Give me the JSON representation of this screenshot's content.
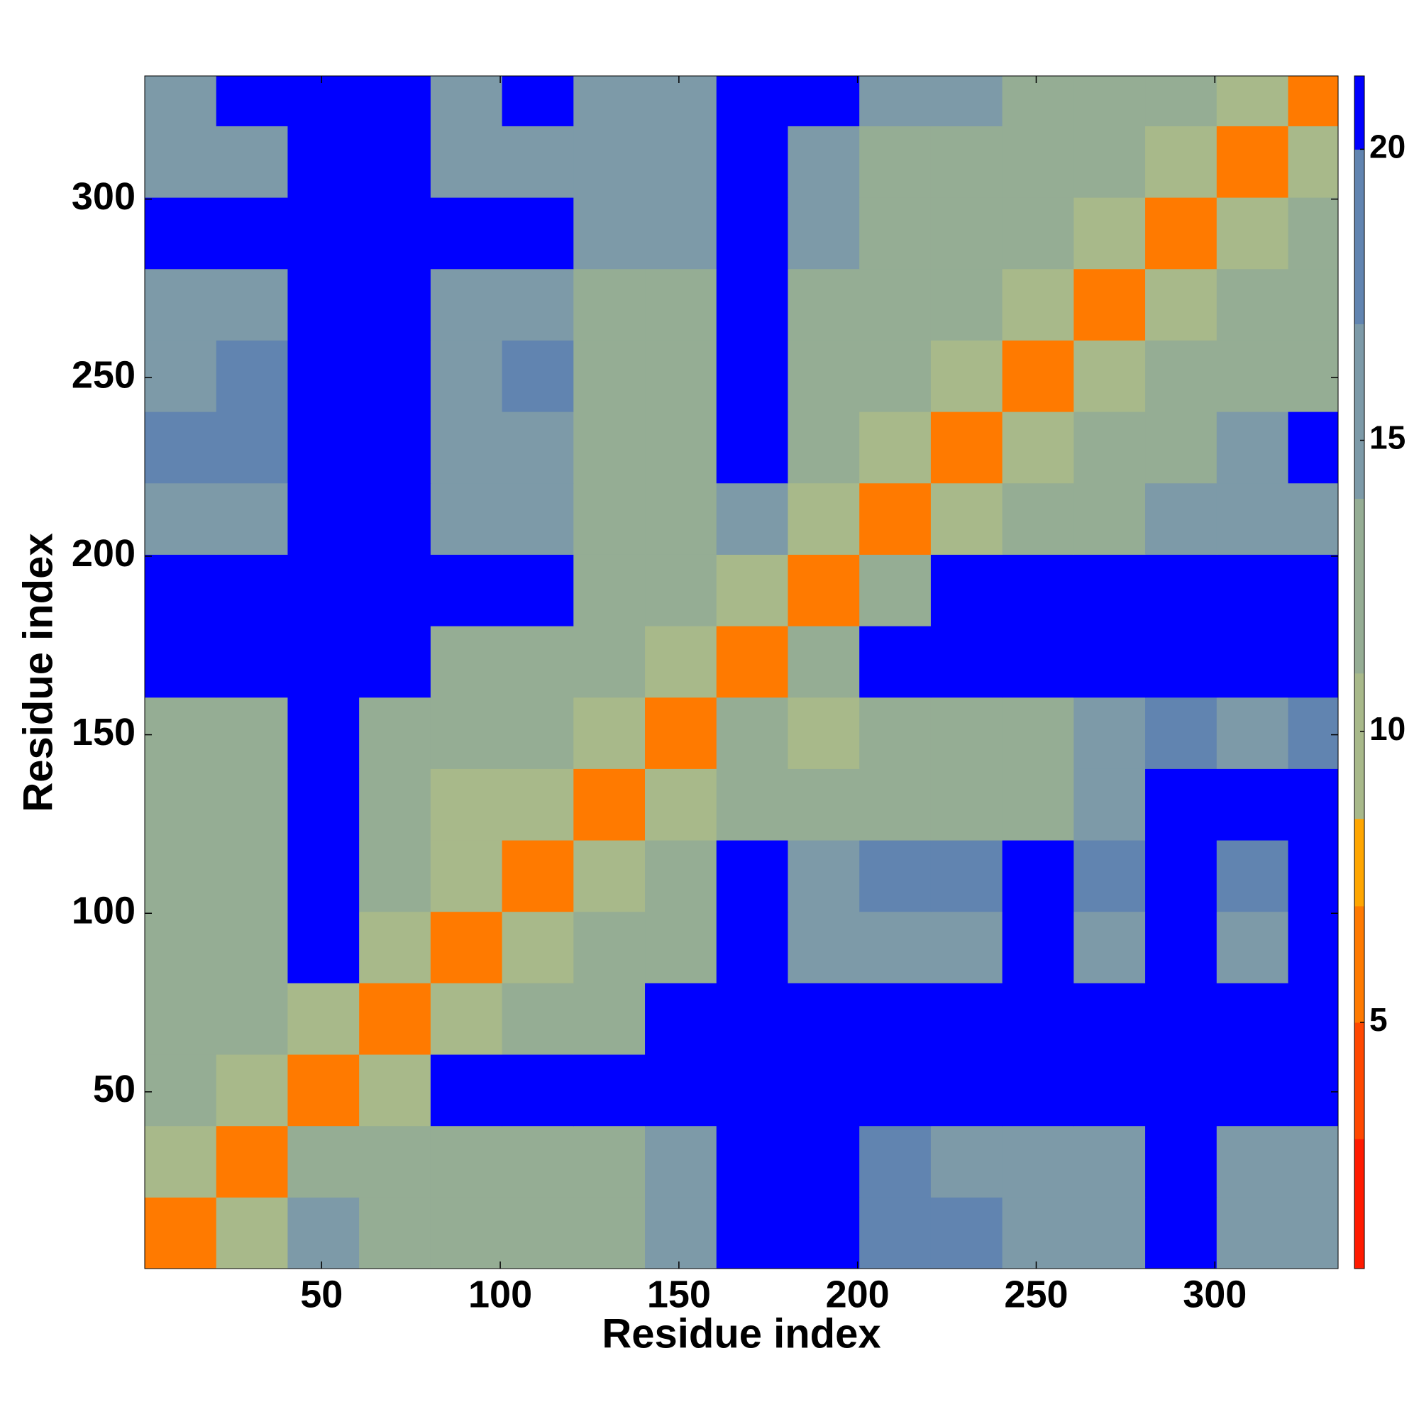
{
  "chart_data": {
    "type": "heatmap",
    "x_label": "Residue index",
    "y_label": "Residue index",
    "x_bins": [
      0.5,
      20.5,
      40.5,
      60.5,
      80.5,
      100.5,
      120.5,
      140.5,
      160.5,
      180.5,
      200.5,
      220.5,
      240.5,
      260.5,
      280.5,
      300.5,
      320.5,
      334.5
    ],
    "y_bins": [
      0.5,
      20.5,
      40.5,
      60.5,
      80.5,
      100.5,
      120.5,
      140.5,
      160.5,
      180.5,
      200.5,
      220.5,
      240.5,
      260.5,
      280.5,
      300.5,
      320.5,
      334.5
    ],
    "values": [
      [
        7,
        11,
        15,
        13,
        12,
        12,
        13,
        15,
        21,
        21,
        18,
        18,
        17,
        17,
        21,
        17,
        17
      ],
      [
        11,
        7,
        12,
        12,
        12,
        12,
        12,
        15,
        21,
        21,
        18,
        17,
        17,
        17,
        21,
        17,
        17
      ],
      [
        14,
        10,
        7,
        11,
        21,
        21,
        21,
        21,
        21,
        21,
        21,
        21,
        21,
        21,
        21,
        21,
        21
      ],
      [
        13,
        12,
        11,
        7,
        11,
        12,
        13,
        21,
        21,
        21,
        21,
        21,
        21,
        21,
        21,
        21,
        21
      ],
      [
        12,
        12,
        21,
        11,
        7,
        10,
        12,
        12,
        21,
        17,
        17,
        17,
        21,
        17,
        21,
        17,
        21
      ],
      [
        12,
        12,
        21,
        12,
        10,
        7,
        11,
        13,
        21,
        17,
        18,
        18,
        21,
        18,
        21,
        18,
        21
      ],
      [
        12,
        13,
        21,
        12,
        11,
        11,
        7,
        11,
        13,
        13,
        13,
        13,
        14,
        15,
        21,
        21,
        21
      ],
      [
        13,
        13,
        21,
        13,
        12,
        12,
        11,
        7,
        12,
        11,
        13,
        13,
        14,
        15,
        18,
        17,
        18
      ],
      [
        21,
        21,
        21,
        21,
        13,
        14,
        12,
        11,
        7,
        12,
        21,
        21,
        21,
        21,
        21,
        21,
        21
      ],
      [
        21,
        21,
        21,
        21,
        21,
        21,
        13,
        12,
        11,
        7,
        12,
        21,
        21,
        21,
        21,
        21,
        21
      ],
      [
        17,
        17,
        21,
        21,
        16,
        16,
        12,
        12,
        15,
        11,
        7,
        11,
        13,
        13,
        16,
        17,
        17
      ],
      [
        18,
        18,
        21,
        21,
        17,
        17,
        13,
        13,
        21,
        13,
        11,
        7,
        11,
        12,
        13,
        16,
        21
      ],
      [
        17,
        18,
        21,
        21,
        17,
        18,
        13,
        13,
        21,
        13,
        12,
        11,
        7,
        11,
        12,
        13,
        14
      ],
      [
        17,
        17,
        21,
        21,
        17,
        17,
        13,
        14,
        21,
        13,
        12,
        12,
        11,
        7,
        11,
        12,
        13
      ],
      [
        21,
        21,
        21,
        21,
        21,
        21,
        15,
        16,
        21,
        15,
        13,
        12,
        12,
        11,
        7,
        11,
        12
      ],
      [
        17,
        17,
        21,
        21,
        17,
        17,
        16,
        17,
        21,
        17,
        14,
        13,
        12,
        12,
        11,
        7,
        11
      ],
      [
        17,
        21,
        21,
        21,
        17,
        21,
        16,
        17,
        21,
        21,
        16,
        15,
        13,
        12,
        12,
        11,
        7
      ]
    ],
    "xlim": [
      0.5,
      334.5
    ],
    "ylim": [
      0.5,
      334.5
    ],
    "xticks": [
      50,
      100,
      150,
      200,
      250,
      300
    ],
    "yticks": [
      50,
      100,
      150,
      200,
      250,
      300
    ],
    "clim": [
      0.77,
      21.26
    ],
    "cticks": [
      5,
      10,
      15,
      20
    ],
    "colorscale": [
      {
        "max": 3,
        "color": "#ff1a00"
      },
      {
        "max": 5,
        "color": "#ff4800"
      },
      {
        "max": 7,
        "color": "#ff7a00"
      },
      {
        "max": 8.5,
        "color": "#ffa600"
      },
      {
        "max": 11,
        "color": "#a8b98a"
      },
      {
        "max": 14,
        "color": "#95ad94"
      },
      {
        "max": 17,
        "color": "#7d9aa8"
      },
      {
        "max": 20,
        "color": "#6184b0"
      },
      {
        "max": 21.26,
        "color": "#0000ff"
      }
    ]
  }
}
